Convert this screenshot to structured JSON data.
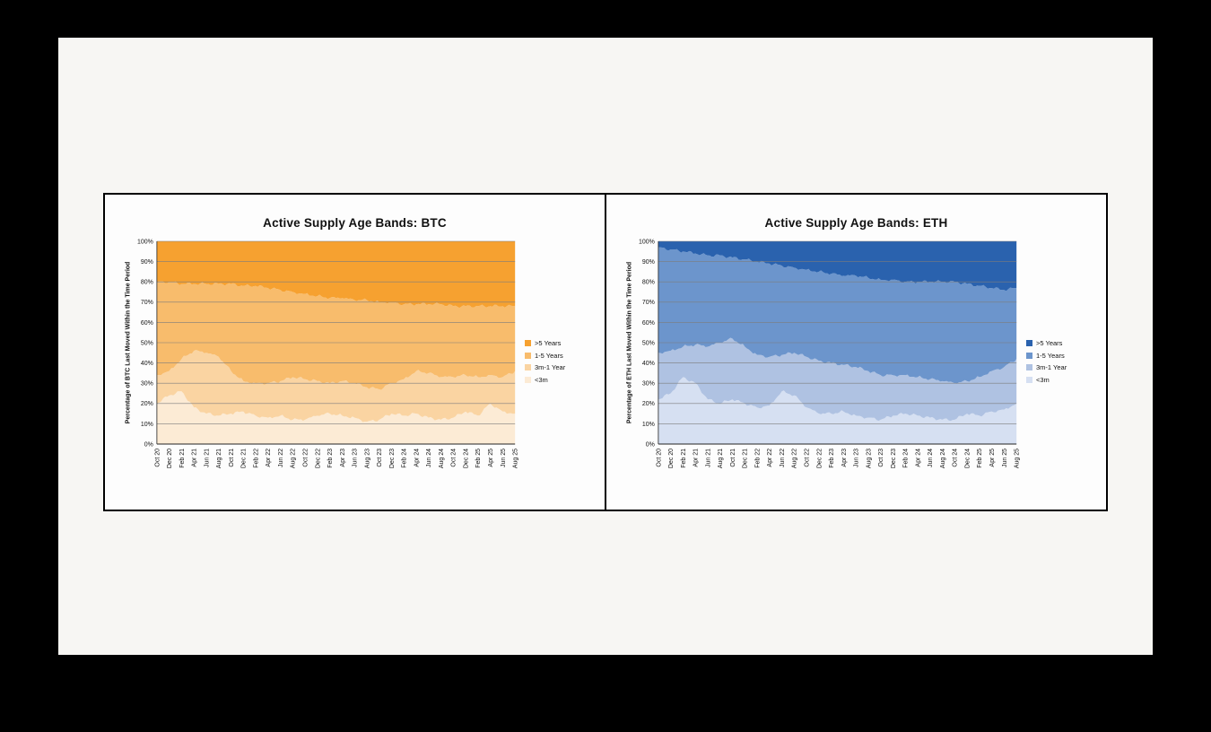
{
  "page": {
    "background": "#000000",
    "canvas_background": "#f7f6f3",
    "panel_background": "#fdfdfd"
  },
  "chart_data": [
    {
      "type": "area",
      "stacked": true,
      "title": "Active Supply Age Bands: BTC",
      "ylabel": "Percentage of BTC Last Moved Within the Time Period",
      "ylim": [
        0,
        100
      ],
      "ytick_step": 10,
      "ytick_suffix": "%",
      "grid": true,
      "legend_position": "right",
      "categories": [
        "Oct 20",
        "Dec 20",
        "Feb 21",
        "Apr 21",
        "Jun 21",
        "Aug 21",
        "Oct 21",
        "Dec 21",
        "Feb 22",
        "Apr 22",
        "Jun 22",
        "Aug 22",
        "Oct 22",
        "Dec 22",
        "Feb 23",
        "Apr 23",
        "Jun 23",
        "Aug 23",
        "Oct 23",
        "Dec 23",
        "Feb 24",
        "Apr 24",
        "Jun 24",
        "Aug 24",
        "Oct 24",
        "Dec 24",
        "Feb 25",
        "Apr 25",
        "Jun 25",
        "Aug 25"
      ],
      "series": [
        {
          "name": "<3m",
          "color": "#FCEBD5",
          "values": [
            20,
            24,
            26,
            18,
            15,
            14,
            15,
            16,
            14,
            13,
            14,
            12,
            12,
            14,
            15,
            14,
            13,
            11,
            12,
            15,
            14,
            15,
            13,
            12,
            13,
            16,
            14,
            20,
            16,
            15
          ]
        },
        {
          "name": "3m-1 Year",
          "color": "#FAD4A2",
          "values": [
            14,
            12,
            16,
            28,
            30,
            29,
            21,
            15,
            16,
            17,
            17,
            21,
            20,
            17,
            15,
            17,
            17,
            17,
            15,
            15,
            18,
            21,
            22,
            21,
            20,
            18,
            19,
            14,
            17,
            21
          ]
        },
        {
          "name": "1-5 Years",
          "color": "#F8BC6C",
          "values": [
            46,
            44,
            37,
            33,
            34,
            36,
            43,
            47,
            48,
            47,
            45,
            42,
            42,
            42,
            42,
            41,
            41,
            43,
            43,
            40,
            37,
            33,
            34,
            36,
            35,
            34,
            35,
            34,
            35,
            32
          ]
        },
        {
          "name": ">5 Years",
          "color": "#F6A130",
          "values": [
            20,
            20,
            21,
            21,
            21,
            21,
            21,
            22,
            22,
            23,
            24,
            25,
            26,
            27,
            28,
            28,
            29,
            29,
            30,
            30,
            31,
            31,
            31,
            31,
            32,
            32,
            32,
            32,
            32,
            32
          ]
        }
      ]
    },
    {
      "type": "area",
      "stacked": true,
      "title": "Active Supply Age Bands: ETH",
      "ylabel": "Percentage of ETH Last Moved Within the Time Period",
      "ylim": [
        0,
        100
      ],
      "ytick_step": 10,
      "ytick_suffix": "%",
      "grid": true,
      "legend_position": "right",
      "categories": [
        "Oct 20",
        "Dec 20",
        "Feb 21",
        "Apr 21",
        "Jun 21",
        "Aug 21",
        "Oct 21",
        "Dec 21",
        "Feb 22",
        "Apr 22",
        "Jun 22",
        "Aug 22",
        "Oct 22",
        "Dec 22",
        "Feb 23",
        "Apr 23",
        "Jun 23",
        "Aug 23",
        "Oct 23",
        "Dec 23",
        "Feb 24",
        "Apr 24",
        "Jun 24",
        "Aug 24",
        "Oct 24",
        "Dec 24",
        "Feb 25",
        "Apr 25",
        "Jun 25",
        "Aug 25"
      ],
      "series": [
        {
          "name": "<3m",
          "color": "#D6E0F2",
          "values": [
            22,
            25,
            33,
            30,
            22,
            20,
            22,
            20,
            18,
            19,
            26,
            24,
            18,
            15,
            15,
            16,
            14,
            13,
            12,
            14,
            15,
            14,
            13,
            12,
            12,
            15,
            14,
            16,
            17,
            20
          ]
        },
        {
          "name": "3m-1 Year",
          "color": "#AFC2E2",
          "values": [
            23,
            21,
            15,
            19,
            26,
            30,
            30,
            28,
            26,
            24,
            18,
            21,
            25,
            26,
            25,
            23,
            24,
            23,
            22,
            20,
            19,
            19,
            19,
            19,
            18,
            16,
            19,
            20,
            21,
            22
          ]
        },
        {
          "name": "1-5 Years",
          "color": "#6C95CC",
          "values": [
            52,
            50,
            47,
            45,
            45,
            43,
            40,
            43,
            46,
            46,
            44,
            42,
            43,
            44,
            44,
            44,
            45,
            46,
            47,
            47,
            46,
            47,
            48,
            49,
            50,
            48,
            45,
            41,
            38,
            35
          ]
        },
        {
          "name": ">5 Years",
          "color": "#2A62AE",
          "values": [
            3,
            4,
            5,
            6,
            7,
            7,
            8,
            9,
            10,
            11,
            12,
            13,
            14,
            15,
            16,
            17,
            17,
            18,
            19,
            19,
            20,
            20,
            20,
            20,
            20,
            21,
            22,
            23,
            24,
            23
          ]
        }
      ]
    }
  ]
}
